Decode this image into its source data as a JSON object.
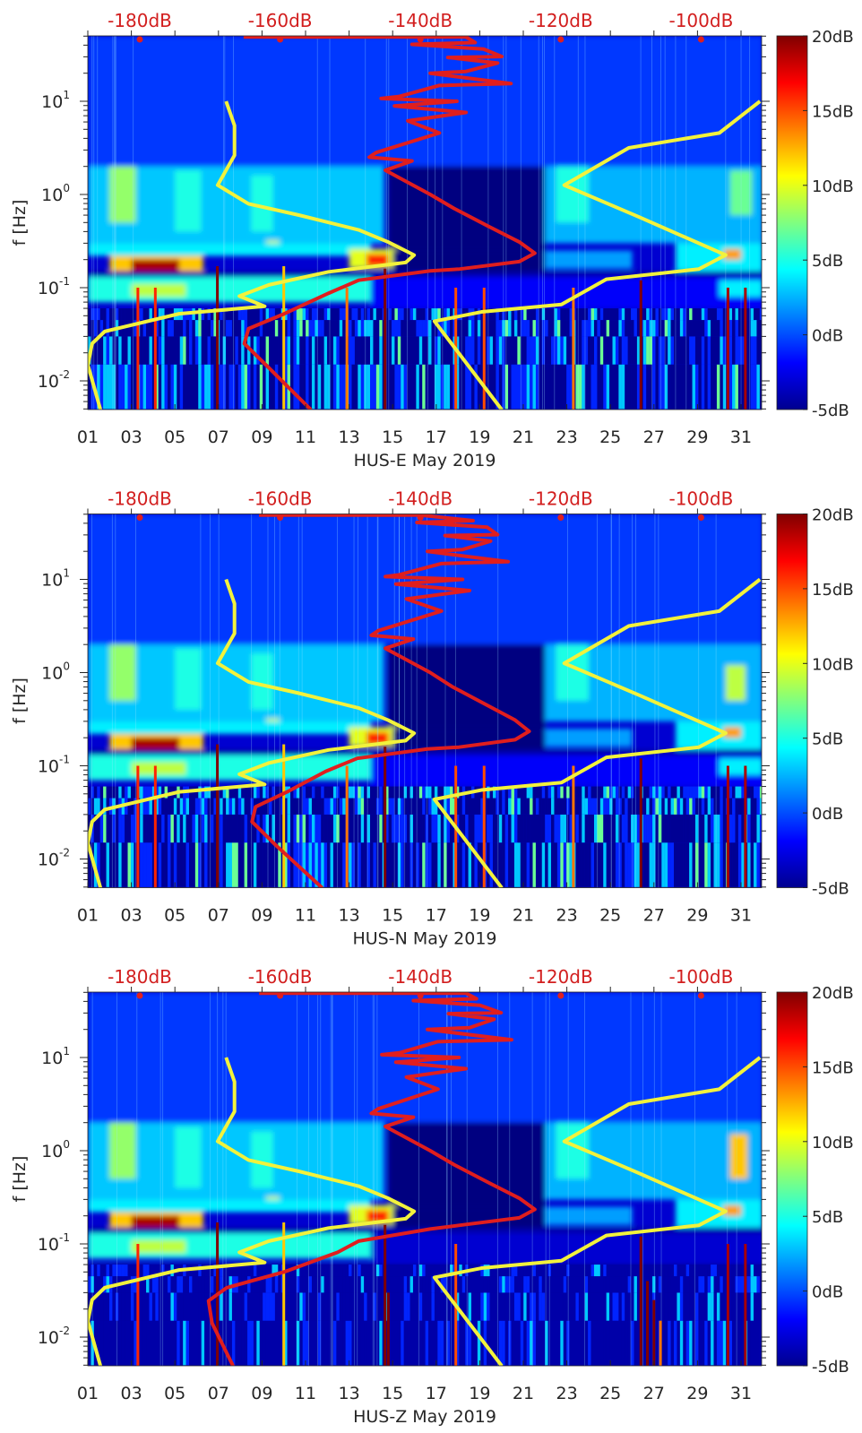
{
  "reference_curves": {
    "color": "#f2f23c",
    "low": {
      "db": [
        -167.7,
        -166.5,
        -166.5,
        -168.9,
        -164.5,
        -157.4,
        -148.8,
        -144.6,
        -140.9,
        -142.1,
        -153.1,
        -161.6,
        -165.8,
        -162.2,
        -174.4,
        -185.0,
        -186.8,
        -187.4,
        -185.6
      ],
      "logf": [
        1.0,
        0.74,
        0.42,
        0.1,
        -0.1,
        -0.22,
        -0.38,
        -0.51,
        -0.65,
        -0.73,
        -0.83,
        -0.97,
        -1.09,
        -1.2,
        -1.28,
        -1.47,
        -1.6,
        -1.83,
        -2.31
      ]
    },
    "high": {
      "db": [
        -91.6,
        -97.4,
        -110.3,
        -119.5,
        -108.9,
        -96.5,
        -100.3,
        -113.5,
        -119.9,
        -131.3,
        -138.0,
        -128.4
      ],
      "logf": [
        1.0,
        0.66,
        0.5,
        0.1,
        -0.24,
        -0.65,
        -0.8,
        -0.91,
        -1.18,
        -1.26,
        -1.36,
        -2.31
      ]
    }
  },
  "psd_color": "#e01e1e",
  "colormap": "jet",
  "chart_data": [
    {
      "type": "heatmap",
      "xlabel": "HUS-E May 2019",
      "ylabel": "f [Hz]",
      "xlim": [
        1,
        32
      ],
      "ylim": [
        0.005,
        50
      ],
      "yscale": "log",
      "x_ticks": [
        "01",
        "03",
        "05",
        "07",
        "09",
        "11",
        "13",
        "15",
        "17",
        "19",
        "21",
        "23",
        "25",
        "27",
        "29",
        "31"
      ],
      "y_ticks": [
        {
          "base": "10",
          "exp": "-2",
          "value": 0.01
        },
        {
          "base": "10",
          "exp": "-1",
          "value": 0.1
        },
        {
          "base": "10",
          "exp": "0",
          "value": 1
        },
        {
          "base": "10",
          "exp": "1",
          "value": 10
        }
      ],
      "top_axis": {
        "ticks": [
          "-180dB",
          "-160dB",
          "-140dB",
          "-120dB",
          "-100dB"
        ],
        "values": [
          -180,
          -160,
          -140,
          -120,
          -100
        ],
        "range_db": [
          -187.4,
          -91.3
        ]
      },
      "colorbar": {
        "range": [
          -5,
          20
        ],
        "ticks": [
          "-5dB",
          "0dB",
          "5dB",
          "10dB",
          "15dB",
          "20dB"
        ],
        "values": [
          -5,
          0,
          5,
          10,
          15,
          20
        ]
      },
      "patches": [
        [
          1,
          32,
          2,
          50,
          -0.5
        ],
        [
          1,
          14.6,
          0.3,
          2,
          3
        ],
        [
          2,
          3.2,
          0.5,
          2,
          8
        ],
        [
          5,
          6.2,
          0.4,
          1.8,
          5
        ],
        [
          8.5,
          9.5,
          0.4,
          1.6,
          5
        ],
        [
          9.2,
          9.8,
          0.24,
          0.32,
          10
        ],
        [
          14.8,
          22,
          0.25,
          2,
          -5
        ],
        [
          22,
          32,
          0.3,
          2,
          2.5
        ],
        [
          22.5,
          24,
          0.5,
          2,
          5
        ],
        [
          30.5,
          31.5,
          0.6,
          1.8,
          7
        ],
        [
          1,
          14,
          0.22,
          0.3,
          4
        ],
        [
          2,
          6.3,
          0.15,
          0.22,
          12
        ],
        [
          3,
          5.2,
          0.15,
          0.2,
          19
        ],
        [
          13,
          15.2,
          0.16,
          0.26,
          10
        ],
        [
          13.8,
          14.8,
          0.17,
          0.23,
          16
        ],
        [
          15,
          22,
          0.13,
          0.25,
          -5
        ],
        [
          22,
          26,
          0.16,
          0.25,
          2
        ],
        [
          28,
          32,
          0.15,
          0.3,
          4
        ],
        [
          30.2,
          31,
          0.2,
          0.26,
          13
        ],
        [
          1,
          32,
          0.13,
          0.15,
          -4
        ],
        [
          1,
          14,
          0.07,
          0.13,
          5
        ],
        [
          3,
          5.5,
          0.08,
          0.11,
          9
        ],
        [
          14,
          32,
          0.06,
          0.13,
          -2
        ],
        [
          30,
          32,
          0.08,
          0.12,
          4
        ]
      ],
      "transients": [
        {
          "day": 6.95,
          "fmax": 0.17,
          "db": 20
        },
        {
          "day": 3.3,
          "fmax": 0.1,
          "db": 16
        },
        {
          "day": 4.1,
          "fmax": 0.1,
          "db": 16
        },
        {
          "day": 10.0,
          "fmax": 0.17,
          "db": 12
        },
        {
          "day": 12.9,
          "fmax": 0.1,
          "db": 14
        },
        {
          "day": 14.65,
          "fmax": 0.16,
          "db": 20
        },
        {
          "day": 17.9,
          "fmax": 0.1,
          "db": 15
        },
        {
          "day": 19.2,
          "fmax": 0.1,
          "db": 15
        },
        {
          "day": 23.3,
          "fmax": 0.1,
          "db": 14
        },
        {
          "day": 26.4,
          "fmax": 0.12,
          "db": 20
        },
        {
          "day": 30.4,
          "fmax": 0.1,
          "db": 19
        },
        {
          "day": 31.2,
          "fmax": 0.1,
          "db": 19
        }
      ],
      "psd_curve": {
        "db": [
          -165.2,
          -133.5,
          -132.2,
          -141.2,
          -131.0,
          -128.4,
          -136.1,
          -129.0,
          -133.5,
          -138.6,
          -127.1,
          -137.3,
          -143.1,
          -145.6,
          -134.8,
          -143.7,
          -133.5,
          -141.8,
          -137.3,
          -146.3,
          -147.3,
          -141.2,
          -145.0,
          -138.6,
          -135.2,
          -130.1,
          -125.9,
          -123.7,
          -125.9,
          -134.4,
          -138.6,
          -148.8,
          -153.1,
          -159.4,
          -164.5,
          -165.1,
          -161.6,
          -155.6
        ],
        "logf": [
          1.69,
          1.69,
          1.63,
          1.61,
          1.56,
          1.48,
          1.47,
          1.41,
          1.32,
          1.3,
          1.19,
          1.17,
          1.05,
          1.03,
          1.0,
          0.95,
          0.88,
          0.79,
          0.66,
          0.45,
          0.4,
          0.36,
          0.26,
          0.0,
          -0.15,
          -0.35,
          -0.51,
          -0.63,
          -0.72,
          -0.8,
          -0.82,
          -0.92,
          -1.06,
          -1.28,
          -1.44,
          -1.6,
          -1.86,
          -2.31
        ]
      }
    },
    {
      "type": "heatmap",
      "xlabel": "HUS-N May 2019",
      "ylabel": "f [Hz]",
      "xlim": [
        1,
        32
      ],
      "ylim": [
        0.005,
        50
      ],
      "yscale": "log",
      "x_ticks": [
        "01",
        "03",
        "05",
        "07",
        "09",
        "11",
        "13",
        "15",
        "17",
        "19",
        "21",
        "23",
        "25",
        "27",
        "29",
        "31"
      ],
      "y_ticks": [
        {
          "base": "10",
          "exp": "-2",
          "value": 0.01
        },
        {
          "base": "10",
          "exp": "-1",
          "value": 0.1
        },
        {
          "base": "10",
          "exp": "0",
          "value": 1
        },
        {
          "base": "10",
          "exp": "1",
          "value": 10
        }
      ],
      "top_axis": {
        "ticks": [
          "-180dB",
          "-160dB",
          "-140dB",
          "-120dB",
          "-100dB"
        ],
        "values": [
          -180,
          -160,
          -140,
          -120,
          -100
        ],
        "range_db": [
          -187.4,
          -91.3
        ]
      },
      "colorbar": {
        "range": [
          -5,
          20
        ],
        "ticks": [
          "-5dB",
          "0dB",
          "5dB",
          "10dB",
          "15dB",
          "20dB"
        ],
        "values": [
          -5,
          0,
          5,
          10,
          15,
          20
        ]
      },
      "patches": [
        [
          1,
          32,
          2,
          50,
          -0.5
        ],
        [
          1,
          14.6,
          0.3,
          2,
          3
        ],
        [
          2,
          3.2,
          0.5,
          2,
          8
        ],
        [
          5,
          6.2,
          0.4,
          1.8,
          5
        ],
        [
          8.5,
          9.5,
          0.4,
          1.6,
          5
        ],
        [
          9.2,
          9.8,
          0.24,
          0.32,
          10
        ],
        [
          14.8,
          22,
          0.25,
          2,
          -5
        ],
        [
          22,
          32,
          0.3,
          2,
          2.5
        ],
        [
          22.5,
          24,
          0.5,
          2,
          5
        ],
        [
          30.3,
          31.2,
          0.5,
          1.2,
          9
        ],
        [
          1,
          14,
          0.22,
          0.3,
          4
        ],
        [
          2,
          6.3,
          0.15,
          0.22,
          12
        ],
        [
          3,
          5.2,
          0.15,
          0.2,
          19
        ],
        [
          13,
          15.2,
          0.16,
          0.26,
          10
        ],
        [
          13.8,
          14.8,
          0.17,
          0.23,
          16
        ],
        [
          15,
          22,
          0.13,
          0.25,
          -5
        ],
        [
          22,
          26,
          0.16,
          0.25,
          2
        ],
        [
          28,
          32,
          0.15,
          0.3,
          4
        ],
        [
          30.2,
          31,
          0.2,
          0.26,
          13
        ],
        [
          1,
          32,
          0.13,
          0.15,
          -4
        ],
        [
          1,
          14,
          0.07,
          0.13,
          5
        ],
        [
          3,
          5.5,
          0.08,
          0.11,
          9
        ],
        [
          14,
          32,
          0.06,
          0.13,
          -2
        ],
        [
          30,
          32,
          0.08,
          0.12,
          4
        ]
      ],
      "transients": [
        {
          "day": 6.95,
          "fmax": 0.17,
          "db": 20
        },
        {
          "day": 3.3,
          "fmax": 0.1,
          "db": 16
        },
        {
          "day": 4.1,
          "fmax": 0.1,
          "db": 16
        },
        {
          "day": 10.0,
          "fmax": 0.17,
          "db": 12
        },
        {
          "day": 12.9,
          "fmax": 0.1,
          "db": 14
        },
        {
          "day": 14.65,
          "fmax": 0.16,
          "db": 20
        },
        {
          "day": 17.9,
          "fmax": 0.1,
          "db": 15
        },
        {
          "day": 19.2,
          "fmax": 0.1,
          "db": 15
        },
        {
          "day": 23.3,
          "fmax": 0.1,
          "db": 14
        },
        {
          "day": 26.4,
          "fmax": 0.12,
          "db": 20
        },
        {
          "day": 30.4,
          "fmax": 0.1,
          "db": 19
        },
        {
          "day": 31.2,
          "fmax": 0.1,
          "db": 19
        }
      ],
      "psd_curve": {
        "db": [
          -163.0,
          -140.0,
          -132.5,
          -140.5,
          -130.5,
          -129.0,
          -136.5,
          -130.0,
          -134.0,
          -139.0,
          -127.5,
          -137.0,
          -143.0,
          -145.0,
          -134.0,
          -143.5,
          -133.0,
          -142.0,
          -137.0,
          -146.0,
          -147.0,
          -141.0,
          -145.0,
          -138.6,
          -135.5,
          -130.5,
          -126.5,
          -124.5,
          -126.5,
          -134.5,
          -139.0,
          -149.0,
          -153.5,
          -159.0,
          -163.5,
          -164.0,
          -160.5,
          -154.0
        ],
        "logf": [
          1.69,
          1.69,
          1.63,
          1.61,
          1.56,
          1.48,
          1.47,
          1.41,
          1.32,
          1.3,
          1.19,
          1.17,
          1.05,
          1.03,
          1.0,
          0.95,
          0.88,
          0.79,
          0.66,
          0.45,
          0.4,
          0.36,
          0.26,
          0.0,
          -0.15,
          -0.35,
          -0.51,
          -0.63,
          -0.72,
          -0.8,
          -0.82,
          -0.92,
          -1.06,
          -1.28,
          -1.44,
          -1.6,
          -1.86,
          -2.31
        ]
      }
    },
    {
      "type": "heatmap",
      "xlabel": "HUS-Z May 2019",
      "ylabel": "f [Hz]",
      "xlim": [
        1,
        32
      ],
      "ylim": [
        0.005,
        50
      ],
      "yscale": "log",
      "x_ticks": [
        "01",
        "03",
        "05",
        "07",
        "09",
        "11",
        "13",
        "15",
        "17",
        "19",
        "21",
        "23",
        "25",
        "27",
        "29",
        "31"
      ],
      "y_ticks": [
        {
          "base": "10",
          "exp": "-2",
          "value": 0.01
        },
        {
          "base": "10",
          "exp": "-1",
          "value": 0.1
        },
        {
          "base": "10",
          "exp": "0",
          "value": 1
        },
        {
          "base": "10",
          "exp": "1",
          "value": 10
        }
      ],
      "top_axis": {
        "ticks": [
          "-180dB",
          "-160dB",
          "-140dB",
          "-120dB",
          "-100dB"
        ],
        "values": [
          -180,
          -160,
          -140,
          -120,
          -100
        ],
        "range_db": [
          -187.4,
          -91.3
        ]
      },
      "colorbar": {
        "range": [
          -5,
          20
        ],
        "ticks": [
          "-5dB",
          "0dB",
          "5dB",
          "10dB",
          "15dB",
          "20dB"
        ],
        "values": [
          -5,
          0,
          5,
          10,
          15,
          20
        ]
      },
      "patches": [
        [
          1,
          32,
          2,
          50,
          -0.5
        ],
        [
          1,
          14.6,
          0.3,
          2,
          3
        ],
        [
          2,
          3.2,
          0.5,
          2,
          8
        ],
        [
          5,
          6.2,
          0.4,
          1.8,
          5
        ],
        [
          8.5,
          9.5,
          0.4,
          1.6,
          5
        ],
        [
          9.2,
          9.8,
          0.24,
          0.32,
          10
        ],
        [
          14.8,
          22,
          0.25,
          2,
          -5
        ],
        [
          22,
          32,
          0.3,
          2,
          2.5
        ],
        [
          22.5,
          24,
          0.5,
          2,
          5
        ],
        [
          30.5,
          31.3,
          0.5,
          1.5,
          12
        ],
        [
          1,
          14,
          0.22,
          0.3,
          4
        ],
        [
          2,
          6.3,
          0.15,
          0.22,
          12
        ],
        [
          3,
          5.2,
          0.15,
          0.2,
          19
        ],
        [
          13,
          15.2,
          0.16,
          0.26,
          10
        ],
        [
          13.8,
          14.8,
          0.17,
          0.23,
          16
        ],
        [
          15,
          22,
          0.13,
          0.25,
          -5
        ],
        [
          22,
          26,
          0.16,
          0.25,
          2
        ],
        [
          28,
          32,
          0.15,
          0.3,
          4
        ],
        [
          30.2,
          31,
          0.2,
          0.26,
          13
        ],
        [
          1,
          32,
          0.13,
          0.15,
          -4
        ],
        [
          1,
          14,
          0.07,
          0.13,
          5
        ],
        [
          3,
          5.5,
          0.08,
          0.11,
          9
        ],
        [
          14,
          32,
          0.06,
          0.13,
          -3
        ],
        [
          1,
          32,
          0.005,
          0.06,
          -4.5
        ]
      ],
      "transients": [
        {
          "day": 6.95,
          "fmax": 0.17,
          "db": 20
        },
        {
          "day": 10.0,
          "fmax": 0.17,
          "db": 12
        },
        {
          "day": 3.3,
          "fmax": 0.1,
          "db": 16
        },
        {
          "day": 14.65,
          "fmax": 0.16,
          "db": 20
        },
        {
          "day": 14.8,
          "fmax": 0.03,
          "db": 20
        },
        {
          "day": 17.9,
          "fmax": 0.1,
          "db": 15
        },
        {
          "day": 26.4,
          "fmax": 0.12,
          "db": 20
        },
        {
          "day": 26.7,
          "fmax": 0.04,
          "db": 20
        },
        {
          "day": 27.0,
          "fmax": 0.025,
          "db": 20
        },
        {
          "day": 27.3,
          "fmax": 0.015,
          "db": 14
        },
        {
          "day": 30.4,
          "fmax": 0.1,
          "db": 19
        },
        {
          "day": 31.2,
          "fmax": 0.1,
          "db": 19
        }
      ],
      "psd_curve": {
        "db": [
          -163.0,
          -133.5,
          -132.0,
          -141.0,
          -131.5,
          -128.5,
          -136.0,
          -129.5,
          -133.0,
          -139.0,
          -127.0,
          -137.5,
          -143.0,
          -145.5,
          -134.5,
          -143.5,
          -133.5,
          -142.0,
          -137.5,
          -146.0,
          -147.0,
          -141.0,
          -145.0,
          -138.6,
          -135.2,
          -130.1,
          -125.9,
          -123.7,
          -125.9,
          -134.4,
          -138.6,
          -148.8,
          -151.8,
          -159.4,
          -167.6,
          -170.2,
          -169.7,
          -166.7
        ],
        "logf": [
          1.69,
          1.69,
          1.63,
          1.61,
          1.56,
          1.48,
          1.47,
          1.41,
          1.32,
          1.3,
          1.19,
          1.17,
          1.05,
          1.03,
          1.0,
          0.95,
          0.88,
          0.79,
          0.66,
          0.45,
          0.4,
          0.36,
          0.26,
          0.0,
          -0.15,
          -0.35,
          -0.51,
          -0.63,
          -0.72,
          -0.8,
          -0.84,
          -0.97,
          -1.09,
          -1.3,
          -1.47,
          -1.61,
          -1.85,
          -2.31
        ]
      }
    }
  ]
}
